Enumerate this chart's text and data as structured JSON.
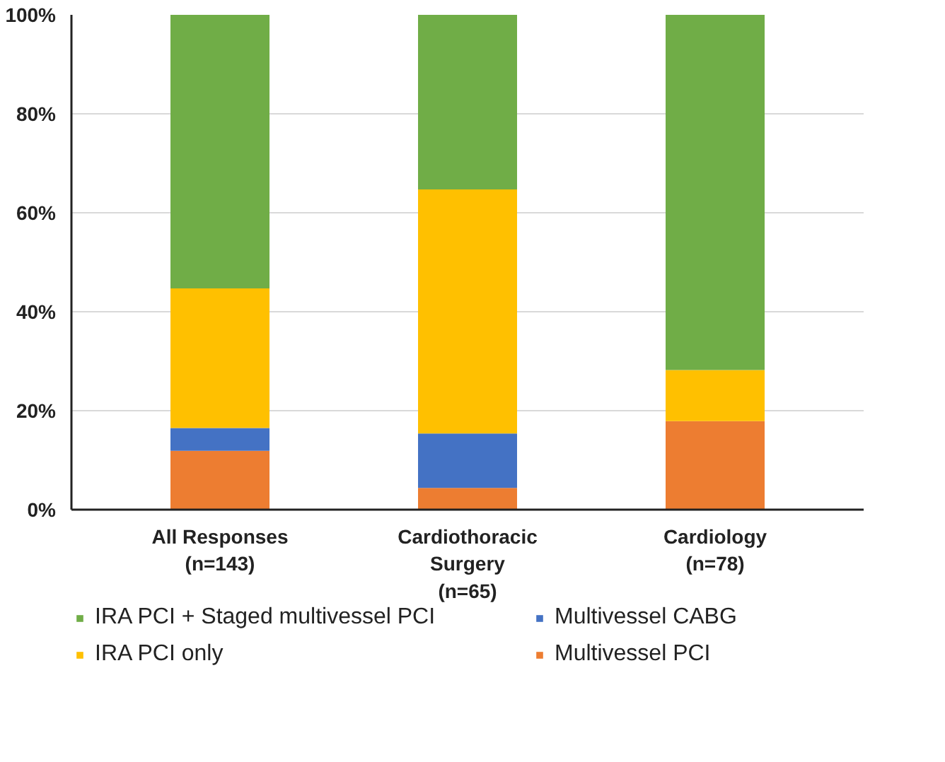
{
  "chart_data": {
    "type": "bar",
    "stacked": true,
    "categories": [
      "All Responses\n(n=143)",
      "Cardiothoracic\nSurgery\n(n=65)",
      "Cardiology\n(n=78)"
    ],
    "series": [
      {
        "name": "Multivessel PCI",
        "color": "#ed7d31",
        "values": [
          11.9,
          4.4,
          17.9
        ]
      },
      {
        "name": "Multivessel CABG",
        "color": "#4472c4",
        "values": [
          4.6,
          11.0,
          0
        ]
      },
      {
        "name": "IRA PCI only",
        "color": "#ffc000",
        "values": [
          28.2,
          49.3,
          10.3
        ]
      },
      {
        "name": "IRA PCI + Staged multivessel PCI",
        "color": "#70ad47",
        "values": [
          55.3,
          35.3,
          71.8
        ]
      }
    ],
    "ylim": [
      0,
      100
    ],
    "yticks": [
      {
        "value": 0,
        "label": "0%"
      },
      {
        "value": 20,
        "label": "20%"
      },
      {
        "value": 40,
        "label": "40%"
      },
      {
        "value": 60,
        "label": "60%"
      },
      {
        "value": 80,
        "label": "80%"
      },
      {
        "value": 100,
        "label": "100%"
      }
    ],
    "grid": "y",
    "legend": "bottom"
  }
}
